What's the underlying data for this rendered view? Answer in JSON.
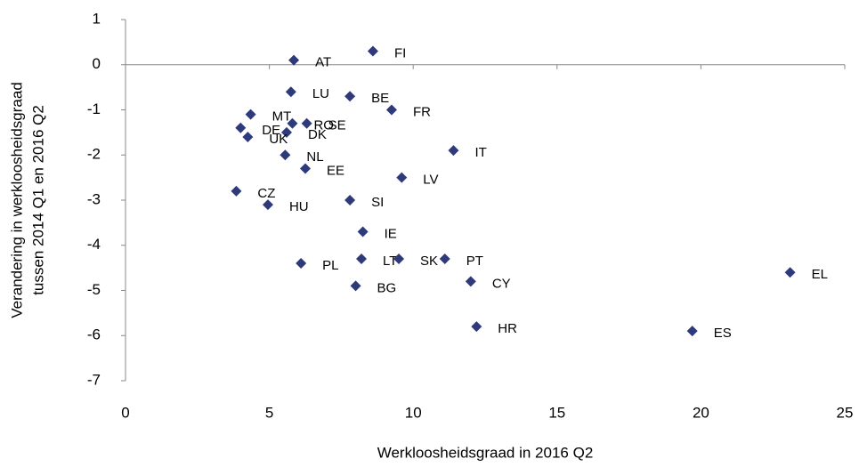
{
  "chart_data": {
    "type": "scatter",
    "x_label": "Werkloosheidsgraad in 2016 Q2",
    "y_label": [
      "Verandering in werkloosheidsgraad",
      "tussen  2014 Q1 en 2016 Q2"
    ],
    "color": "#2e3a7a",
    "labels": [
      "AT",
      "FI",
      "LU",
      "BE",
      "FR",
      "MT",
      "RO",
      "SE",
      "DE",
      "DK",
      "UK",
      "IT",
      "NL",
      "EE",
      "LV",
      "CZ",
      "HU",
      "SI",
      "IE",
      "PL",
      "LT",
      "SK",
      "PT",
      "CY",
      "BG",
      "HR",
      "ES",
      "EL"
    ],
    "x": [
      5.85,
      8.6,
      5.75,
      7.8,
      9.25,
      4.35,
      5.8,
      6.3,
      4.0,
      5.6,
      4.25,
      11.4,
      5.55,
      6.25,
      9.6,
      3.85,
      4.95,
      7.8,
      8.25,
      6.1,
      8.2,
      9.5,
      11.1,
      12.0,
      8.0,
      12.2,
      19.7,
      23.1
    ],
    "y": [
      0.1,
      0.3,
      -0.6,
      -0.7,
      -1.0,
      -1.1,
      -1.3,
      -1.3,
      -1.4,
      -1.5,
      -1.6,
      -1.9,
      -2.0,
      -2.3,
      -2.5,
      -2.8,
      -3.1,
      -3.0,
      -3.7,
      -4.4,
      -4.3,
      -4.3,
      -4.3,
      -4.8,
      -4.9,
      -5.8,
      -5.9,
      -4.6
    ],
    "xlim": [
      0,
      25
    ],
    "xticks": [
      0,
      5,
      10,
      15,
      20,
      25
    ],
    "ylim": [
      -7,
      1
    ],
    "yticks": [
      -7,
      -6,
      -5,
      -4,
      -3,
      -2,
      -1,
      0,
      1
    ]
  }
}
